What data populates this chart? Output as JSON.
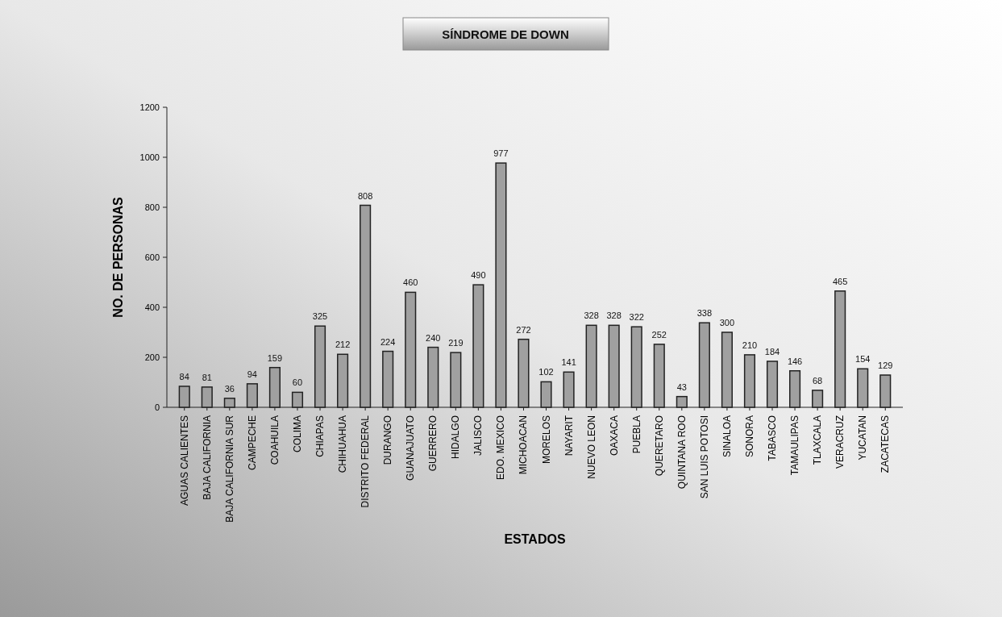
{
  "chart_data": {
    "type": "bar",
    "title": "SÍNDROME DE DOWN",
    "xlabel": "ESTADOS",
    "ylabel": "NO. DE PERSONAS",
    "categories": [
      "AGUAS CALIENTES",
      "BAJA CALIFORNIA",
      "BAJA CALIFORNIA SUR",
      "CAMPECHE",
      "COAHUILA",
      "COLIMA",
      "CHIAPAS",
      "CHIHUAHUA",
      "DISTRITO FEDERAL",
      "DURANGO",
      "GUANAJUATO",
      "GUERRERO",
      "HIDALGO",
      "JALISCO",
      "EDO. MEXICO",
      "MICHOACAN",
      "MORELOS",
      "NAYARIT",
      "NUEVO LEON",
      "OAXACA",
      "PUEBLA",
      "QUERETARO",
      "QUINTANA ROO",
      "SAN LUIS POTOSI",
      "SINALOA",
      "SONORA",
      "TABASCO",
      "TAMAULIPAS",
      "TLAXCALA",
      "VERACRUZ",
      "YUCATAN",
      "ZACATECAS"
    ],
    "values": [
      84,
      81,
      36,
      94,
      159,
      60,
      325,
      212,
      808,
      224,
      460,
      240,
      219,
      490,
      977,
      272,
      102,
      141,
      328,
      328,
      322,
      252,
      43,
      338,
      300,
      210,
      184,
      146,
      68,
      465,
      154,
      129
    ],
    "color": "#a0a0a0",
    "ylim": [
      0,
      1200
    ],
    "yticks": [
      0,
      200,
      400,
      600,
      800,
      1000,
      1200
    ],
    "data_labels": true,
    "grid": false
  }
}
